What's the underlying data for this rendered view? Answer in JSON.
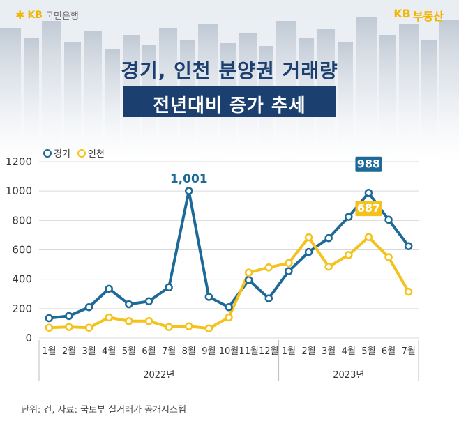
{
  "brand": {
    "left_logo": "KB",
    "left_name": "국민은행",
    "right_logo": "KB",
    "right_name": "부동산"
  },
  "title": {
    "line1": "경기, 인천 분양권 거래량",
    "line2": "전년대비 증가 추세"
  },
  "footnote": "단위: 건, 자료: 국토부 실거래가 공개시스템",
  "colors": {
    "gyeonggi": "#1d6a99",
    "incheon": "#f5c21b",
    "title_bg": "#1b3f6e",
    "grid": "#d9d9d9"
  },
  "chart_data": {
    "type": "line",
    "categories": [
      "1월",
      "2월",
      "3월",
      "4월",
      "5월",
      "6월",
      "7월",
      "8월",
      "9월",
      "10월",
      "11월",
      "12월",
      "1월",
      "2월",
      "3월",
      "4월",
      "5월",
      "6월",
      "7월"
    ],
    "year_groups": [
      {
        "label": "2022년",
        "start": 0,
        "end": 11
      },
      {
        "label": "2023년",
        "start": 12,
        "end": 18
      }
    ],
    "series": [
      {
        "name": "경기",
        "color": "#1d6a99",
        "values": [
          135,
          150,
          210,
          335,
          230,
          250,
          345,
          1001,
          280,
          210,
          395,
          270,
          455,
          585,
          680,
          825,
          988,
          805,
          625
        ]
      },
      {
        "name": "인천",
        "color": "#f5c21b",
        "values": [
          70,
          75,
          70,
          140,
          115,
          115,
          75,
          80,
          65,
          140,
          445,
          480,
          510,
          685,
          485,
          565,
          687,
          550,
          315
        ]
      }
    ],
    "ylim": [
      0,
      1200
    ],
    "yticks": [
      0,
      200,
      400,
      600,
      800,
      1000,
      1200
    ],
    "grid": true,
    "legend": "top-left",
    "annotations": [
      {
        "series": 0,
        "index": 7,
        "text": "1,001",
        "style": "plain"
      },
      {
        "series": 0,
        "index": 16,
        "text": "988",
        "style": "box"
      },
      {
        "series": 1,
        "index": 16,
        "text": "687",
        "style": "box"
      }
    ]
  }
}
